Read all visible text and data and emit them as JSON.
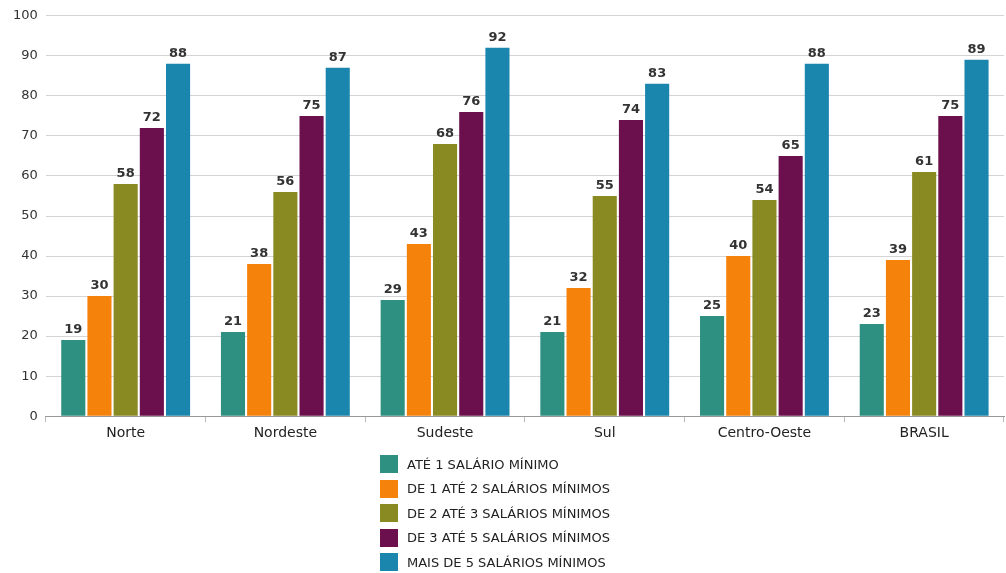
{
  "chart_data": {
    "type": "bar",
    "categories": [
      "Norte",
      "Nordeste",
      "Sudeste",
      "Sul",
      "Centro-Oeste",
      "BRASIL"
    ],
    "series": [
      {
        "name": "ATÉ 1 SALÁRIO MÍNIMO",
        "color": "#2e9080",
        "values": [
          19,
          21,
          29,
          21,
          25,
          23
        ]
      },
      {
        "name": "DE 1 ATÉ 2 SALÁRIOS MÍNIMOS",
        "color": "#f5820a",
        "values": [
          30,
          38,
          43,
          32,
          40,
          39
        ]
      },
      {
        "name": "DE 2 ATÉ 3 SALÁRIOS MÍNIMOS",
        "color": "#8a8a23",
        "values": [
          58,
          56,
          68,
          55,
          54,
          61
        ]
      },
      {
        "name": "DE 3 ATÉ 5 SALÁRIOS MÍNIMOS",
        "color": "#6b0f4d",
        "values": [
          72,
          75,
          76,
          74,
          65,
          75
        ]
      },
      {
        "name": "MAIS DE 5 SALÁRIOS MÍNIMOS",
        "color": "#1a85ad",
        "values": [
          88,
          87,
          92,
          83,
          88,
          89
        ]
      }
    ],
    "ylim": [
      0,
      100
    ],
    "yticks": [
      0,
      10,
      20,
      30,
      40,
      50,
      60,
      70,
      80,
      90,
      100
    ],
    "grid": "y",
    "legend": "bottom",
    "data_labels": true
  }
}
